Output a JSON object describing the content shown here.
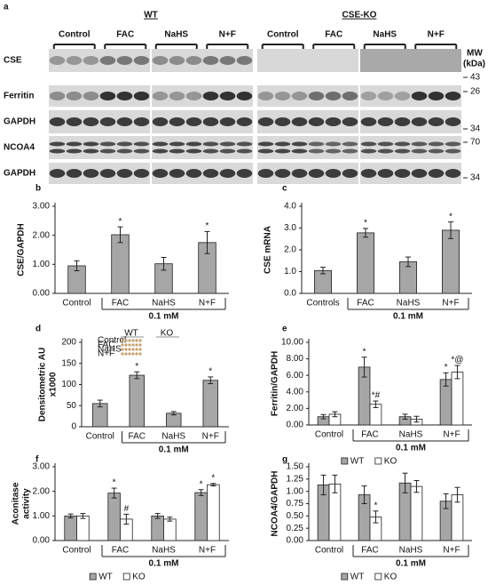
{
  "blot": {
    "panel": "a",
    "groups": [
      {
        "name": "WT",
        "conditions": [
          "Control",
          "FAC",
          "NaHS",
          "N+F"
        ]
      },
      {
        "name": "CSE-KO",
        "conditions": [
          "Control",
          "FAC",
          "NaHS",
          "N+F"
        ]
      }
    ],
    "rows": [
      "CSE",
      "Ferritin",
      "GAPDH",
      "NCOA4",
      "GAPDH"
    ],
    "mw_title": "MW",
    "mw_unit": "(kDa)",
    "mw_markers": [
      43,
      26,
      34,
      70,
      34
    ]
  },
  "chart_data": [
    {
      "type": "bar",
      "panel": "b",
      "ylabel": "CSE/GAPDH",
      "categories": [
        "Control",
        "FAC",
        "NaHS",
        "N+F"
      ],
      "values": [
        0.95,
        2.02,
        1.02,
        1.75
      ],
      "errors": [
        0.17,
        0.27,
        0.22,
        0.38
      ],
      "annotations": [
        null,
        "*",
        null,
        "*"
      ],
      "color": "#a6a6a6",
      "bracket_label": "0.1 mM",
      "ylim": [
        0,
        3
      ],
      "yticks": [
        {
          "value": 0,
          "label": "0.00"
        },
        {
          "value": 1,
          "label": "1.00"
        },
        {
          "value": 2,
          "label": "2.00"
        },
        {
          "value": 3,
          "label": "3.00"
        }
      ]
    },
    {
      "type": "bar",
      "panel": "c",
      "ylabel": "CSE mRNA",
      "categories": [
        "Controls",
        "FAC",
        "NaHS",
        "N+F"
      ],
      "values": [
        1.05,
        2.78,
        1.45,
        2.9
      ],
      "errors": [
        0.15,
        0.2,
        0.22,
        0.38
      ],
      "annotations": [
        null,
        "*",
        null,
        "*"
      ],
      "color": "#a6a6a6",
      "bracket_label": "0.1 mM",
      "ylim": [
        0,
        4
      ],
      "yticks": [
        {
          "value": 0,
          "label": "0.0"
        },
        {
          "value": 1,
          "label": "1.0"
        },
        {
          "value": 2,
          "label": "2.0"
        },
        {
          "value": 3,
          "label": "3.0"
        },
        {
          "value": 4,
          "label": "4.0"
        }
      ]
    },
    {
      "type": "bar",
      "panel": "d",
      "ylabel": [
        "Densitometric AU",
        "x1000"
      ],
      "categories": [
        "Control",
        "FAC",
        "NaHS",
        "N+F"
      ],
      "values": [
        55,
        122,
        32,
        110
      ],
      "errors": [
        8,
        8,
        4,
        8
      ],
      "annotations": [
        null,
        "*",
        null,
        "*"
      ],
      "color": "#a6a6a6",
      "bracket_label": "0.1 mM",
      "inset": {
        "groups": [
          "WT",
          "KO"
        ],
        "rows": [
          "Control",
          "FAC",
          "NaHS",
          "N+F"
        ]
      },
      "ylim": [
        0,
        200
      ],
      "yticks": [
        0,
        50,
        100,
        150,
        200
      ]
    },
    {
      "type": "grouped_bar",
      "panel": "e",
      "ylabel": "Ferritin/GAPDH",
      "categories": [
        "Control",
        "FAC",
        "NaHS",
        "N+F"
      ],
      "series": [
        {
          "name": "WT",
          "color": "#a6a6a6",
          "values": [
            1.0,
            7.0,
            1.0,
            5.5
          ],
          "errors": [
            0.25,
            1.2,
            0.3,
            0.8
          ],
          "annotations": [
            null,
            "*",
            null,
            "*"
          ]
        },
        {
          "name": "KO",
          "color": "#ffffff",
          "values": [
            1.3,
            2.5,
            0.7,
            6.4
          ],
          "errors": [
            0.3,
            0.4,
            0.35,
            0.8
          ],
          "annotations": [
            null,
            "*#",
            null,
            "*@"
          ]
        }
      ],
      "bracket_label": "0.1 mM",
      "ylim": [
        0,
        10
      ],
      "yticks": [
        {
          "value": 0,
          "label": "0.00"
        },
        {
          "value": 2,
          "label": "2.00"
        },
        {
          "value": 4,
          "label": "4.00"
        },
        {
          "value": 6,
          "label": "6.00"
        },
        {
          "value": 8,
          "label": "8.00"
        },
        {
          "value": 10,
          "label": "10.00"
        }
      ]
    },
    {
      "type": "grouped_bar",
      "panel": "f",
      "ylabel": [
        "Aconitase",
        "activity"
      ],
      "categories": [
        "Control",
        "FAC",
        "NaHS",
        "N+F"
      ],
      "series": [
        {
          "name": "WT",
          "color": "#a6a6a6",
          "values": [
            1.0,
            1.93,
            1.0,
            1.95
          ],
          "errors": [
            0.08,
            0.2,
            0.1,
            0.12
          ],
          "annotations": [
            null,
            "*",
            null,
            "*"
          ]
        },
        {
          "name": "KO",
          "color": "#ffffff",
          "values": [
            1.0,
            0.87,
            0.87,
            2.27
          ],
          "errors": [
            0.1,
            0.2,
            0.08,
            0.05
          ],
          "annotations": [
            null,
            "#",
            null,
            "*"
          ]
        }
      ],
      "bracket_label": "0.1 mM",
      "ylim": [
        0,
        3
      ],
      "yticks": [
        {
          "value": 0,
          "label": "0.00"
        },
        {
          "value": 1,
          "label": "1.00"
        },
        {
          "value": 2,
          "label": "2.00"
        },
        {
          "value": 3,
          "label": "3.00"
        }
      ]
    },
    {
      "type": "grouped_bar",
      "panel": "g",
      "ylabel": "NCOA4/GAPDH",
      "categories": [
        "Control",
        "FAC",
        "NaHS",
        "N+F"
      ],
      "series": [
        {
          "name": "WT",
          "color": "#a6a6a6",
          "values": [
            1.13,
            0.93,
            1.17,
            0.8
          ],
          "errors": [
            0.2,
            0.18,
            0.2,
            0.15
          ],
          "annotations": [
            null,
            null,
            null,
            null
          ]
        },
        {
          "name": "KO",
          "color": "#ffffff",
          "values": [
            1.15,
            0.48,
            1.1,
            0.93
          ],
          "errors": [
            0.18,
            0.12,
            0.12,
            0.15
          ],
          "annotations": [
            null,
            "*",
            null,
            null
          ]
        }
      ],
      "bracket_label": "0.1 mM",
      "ylim": [
        0,
        1.5
      ],
      "yticks": [
        {
          "value": 0,
          "label": "0.00"
        },
        {
          "value": 0.25,
          "label": "0.25"
        },
        {
          "value": 0.5,
          "label": "0.50"
        },
        {
          "value": 0.75,
          "label": "0.75"
        },
        {
          "value": 1,
          "label": "1.00"
        },
        {
          "value": 1.25,
          "label": "1.25"
        },
        {
          "value": 1.5,
          "label": "1.50"
        }
      ]
    }
  ]
}
